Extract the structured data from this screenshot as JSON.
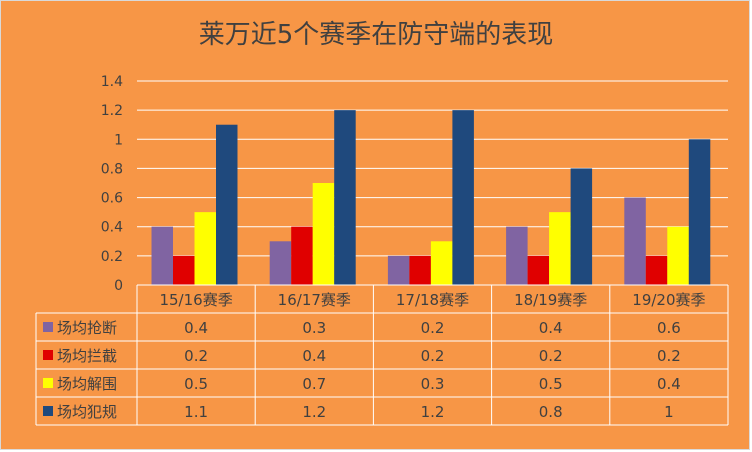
{
  "chart_data": {
    "type": "bar",
    "title": "莱万近5个赛季在防守端的表现",
    "categories": [
      "15/16赛季",
      "16/17赛季",
      "17/18赛季",
      "18/19赛季",
      "19/20赛季"
    ],
    "series": [
      {
        "name": "场均抢断",
        "values": [
          0.4,
          0.3,
          0.2,
          0.4,
          0.6
        ],
        "color": "#8064A2"
      },
      {
        "name": "场均拦截",
        "values": [
          0.2,
          0.4,
          0.2,
          0.2,
          0.2
        ],
        "color": "#E00000"
      },
      {
        "name": "场均解围",
        "values": [
          0.5,
          0.7,
          0.3,
          0.5,
          0.4
        ],
        "color": "#FFFF00"
      },
      {
        "name": "场均犯规",
        "values": [
          1.1,
          1.2,
          1.2,
          0.8,
          1
        ],
        "color": "#1F497D"
      }
    ],
    "y_ticks": [
      "0",
      "0.2",
      "0.4",
      "0.6",
      "0.8",
      "1",
      "1.2",
      "1.4"
    ],
    "ylim": [
      0,
      1.4
    ],
    "grid": true,
    "legend": "data-table"
  }
}
